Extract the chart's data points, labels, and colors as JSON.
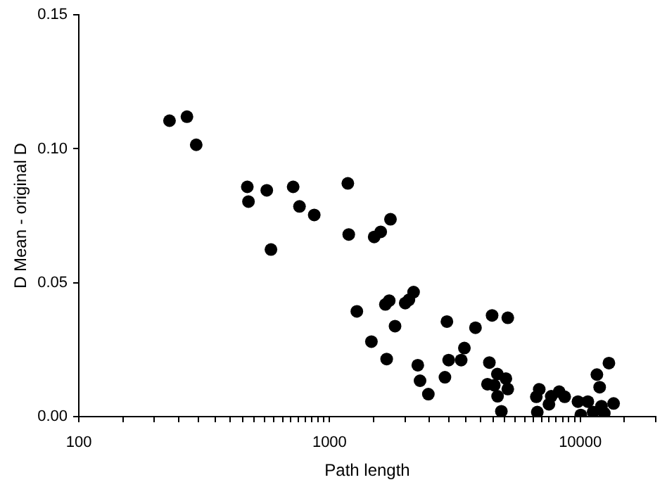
{
  "chart_data": {
    "type": "scatter",
    "xlabel": "Path length",
    "ylabel": "D Mean - original D",
    "log": "x",
    "grid": false,
    "legend": false,
    "marker": "circle",
    "xlim": [
      100,
      20000
    ],
    "xticks": [
      100,
      {
        "value": 150,
        "label": null
      },
      {
        "value": 200,
        "label": null
      },
      {
        "value": 250,
        "label": null
      },
      {
        "value": 300,
        "label": null
      },
      {
        "value": 350,
        "label": null
      },
      {
        "value": 400,
        "label": null
      },
      {
        "value": 450,
        "label": null
      },
      {
        "value": 500,
        "label": null
      },
      {
        "value": 550,
        "label": null
      },
      {
        "value": 600,
        "label": null
      },
      {
        "value": 650,
        "label": null
      },
      {
        "value": 700,
        "label": null
      },
      {
        "value": 750,
        "label": null
      },
      {
        "value": 800,
        "label": null
      },
      {
        "value": 850,
        "label": null
      },
      {
        "value": 900,
        "label": null
      },
      {
        "value": 950,
        "label": null
      },
      1000,
      {
        "value": 1500,
        "label": null
      },
      {
        "value": 2000,
        "label": null
      },
      {
        "value": 2500,
        "label": null
      },
      {
        "value": 3000,
        "label": null
      },
      {
        "value": 3500,
        "label": null
      },
      {
        "value": 4000,
        "label": null
      },
      {
        "value": 4500,
        "label": null
      },
      {
        "value": 5000,
        "label": null
      },
      {
        "value": 5500,
        "label": null
      },
      {
        "value": 6000,
        "label": null
      },
      {
        "value": 6500,
        "label": null
      },
      {
        "value": 7000,
        "label": null
      },
      {
        "value": 7500,
        "label": null
      },
      {
        "value": 8000,
        "label": null
      },
      {
        "value": 8500,
        "label": null
      },
      {
        "value": 9000,
        "label": null
      },
      {
        "value": 9500,
        "label": null
      },
      10000,
      {
        "value": 15000,
        "label": null
      },
      {
        "value": 20000,
        "label": null
      }
    ],
    "ylim": [
      0,
      0.15
    ],
    "yticks": [
      {
        "value": 0,
        "label": "0.00"
      },
      {
        "value": 0.05,
        "label": "0.05"
      },
      {
        "value": 0.1,
        "label": "0.10"
      },
      {
        "value": 0.15,
        "label": "0.15"
      }
    ],
    "series": [
      {
        "color": "#000000",
        "x": [
          230,
          270,
          294,
          470,
          475,
          562,
          584,
          716,
          759,
          869,
          1183,
          1193,
          1507,
          1285,
          1469,
          1600,
          1750,
          1690,
          1670,
          1730,
          1825,
          2004,
          2073,
          2164,
          2249,
          2296,
          2478,
          2886,
          2986,
          2939,
          3350,
          3450,
          3820,
          4340,
          4450,
          5140,
          4670,
          4265,
          4540,
          5050,
          5140,
          4680,
          4845,
          6680,
          6860,
          6740,
          7500,
          7660,
          8240,
          8670,
          9790,
          10720,
          10050,
          11250,
          11650,
          11950,
          12150,
          12470,
          13010,
          13580
        ],
        "values": [
          0.1105,
          0.112,
          0.1015,
          0.0858,
          0.0803,
          0.0845,
          0.0624,
          0.0858,
          0.0785,
          0.0753,
          0.0871,
          0.068,
          0.0671,
          0.0393,
          0.028,
          0.069,
          0.0737,
          0.0215,
          0.0419,
          0.0433,
          0.0338,
          0.0424,
          0.0436,
          0.0465,
          0.0192,
          0.0134,
          0.0084,
          0.0147,
          0.0211,
          0.0355,
          0.0211,
          0.0256,
          0.0332,
          0.0202,
          0.0378,
          0.0369,
          0.0159,
          0.0121,
          0.0117,
          0.0142,
          0.0103,
          0.0076,
          0.002,
          0.0074,
          0.0102,
          0.0017,
          0.0046,
          0.0076,
          0.0093,
          0.0074,
          0.0056,
          0.0056,
          0.0006,
          0.0017,
          0.0157,
          0.011,
          0.0039,
          0.0013,
          0.02,
          0.0049
        ]
      }
    ]
  }
}
